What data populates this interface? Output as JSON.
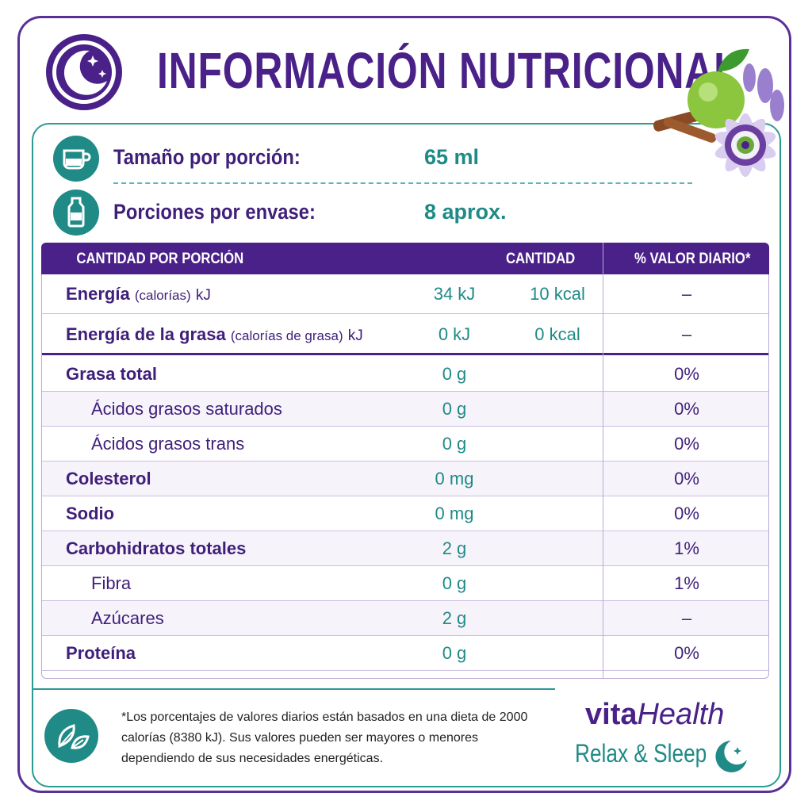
{
  "header": {
    "title": "INFORMACIÓN NUTRICIONAL"
  },
  "serving": [
    {
      "label": "Tamaño por porción:",
      "value": "65 ml"
    },
    {
      "label": "Porciones por envase:",
      "value": "8 aprox."
    }
  ],
  "table": {
    "headers": [
      "CANTIDAD POR PORCIÓN",
      "CANTIDAD",
      "% VALOR DIARIO*"
    ],
    "energy_rows": [
      {
        "label": "Energía",
        "note": "(calorías)",
        "unit": "kJ",
        "kj": "34 kJ",
        "kcal": "10 kcal",
        "dv": "–"
      },
      {
        "label": "Energía de la grasa",
        "note": "(calorías de grasa)",
        "unit": "kJ",
        "kj": "0 kJ",
        "kcal": "0 kcal",
        "dv": "–"
      }
    ],
    "rows": [
      {
        "label": "Grasa total",
        "amount": "0 g",
        "dv": "0%",
        "sub": [
          {
            "label": "Ácidos grasos saturados",
            "amount": "0 g",
            "dv": "0%"
          },
          {
            "label": "Ácidos grasos trans",
            "amount": "0 g",
            "dv": "0%"
          }
        ]
      },
      {
        "label": "Colesterol",
        "amount": "0 mg",
        "dv": "0%"
      },
      {
        "label": "Sodio",
        "amount": "0 mg",
        "dv": "0%"
      },
      {
        "label": "Carbohidratos totales",
        "amount": "2 g",
        "dv": "1%",
        "sub": [
          {
            "label": "Fibra",
            "amount": "0 g",
            "dv": "1%"
          },
          {
            "label": "Azúcares",
            "amount": "2 g",
            "dv": "–"
          }
        ]
      },
      {
        "label": "Proteína",
        "amount": "0 g",
        "dv": "0%"
      }
    ]
  },
  "footnote": "*Los porcentajes de valores diarios están basados en una dieta de 2000 calorías (8380 kJ). Sus valores pueden ser mayores o menores dependiendo de sus necesidades energéticas.",
  "brand": {
    "name_a": "vita",
    "name_b": "Health",
    "tagline": "Relax & Sleep"
  }
}
